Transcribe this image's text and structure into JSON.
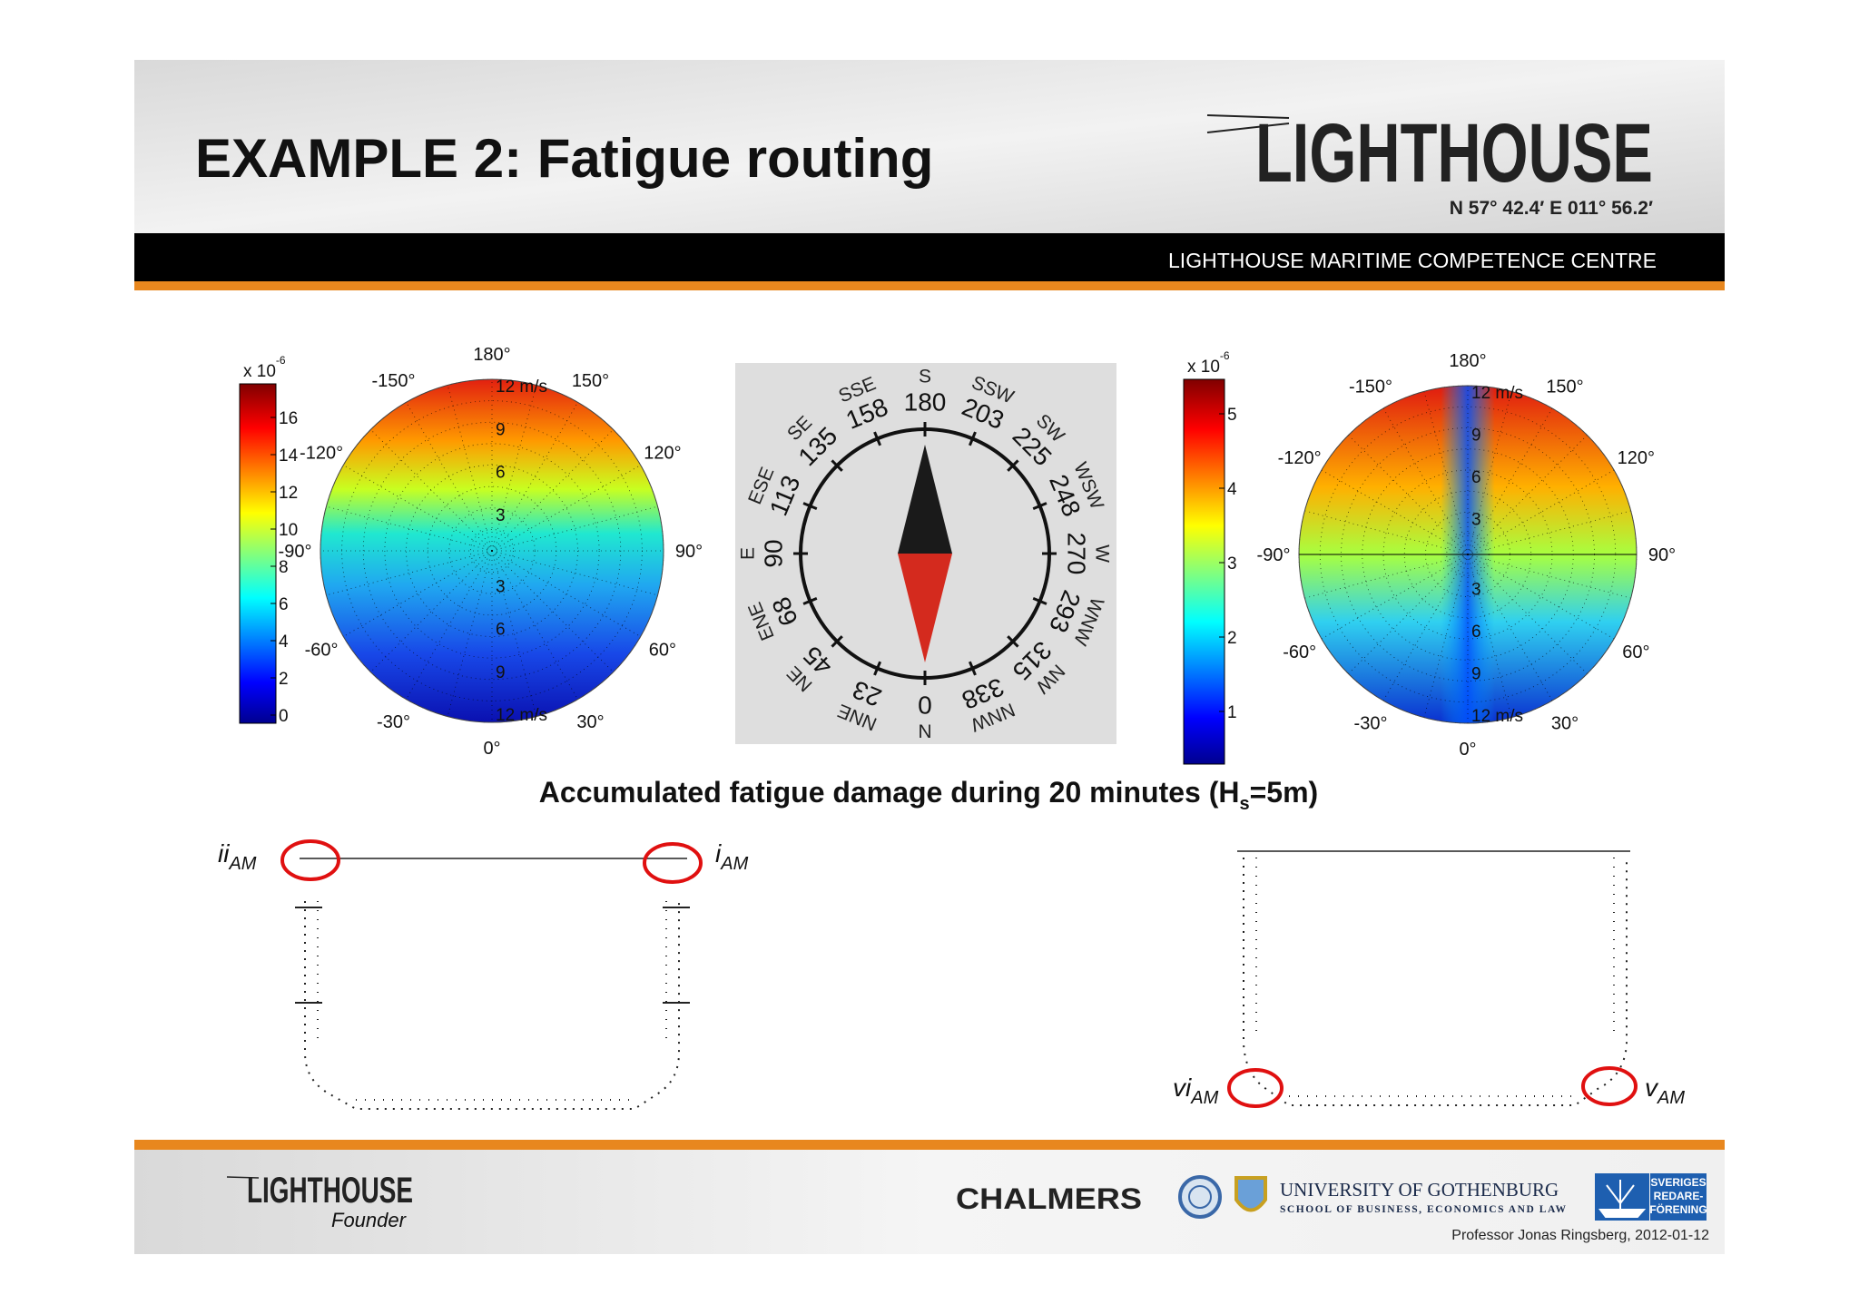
{
  "header": {
    "title": "EXAMPLE 2: Fatigue routing",
    "logo": "LIGHTHOUSE",
    "coordinates": "N 57° 42.4′  E 011° 56.2′",
    "banner": "LIGHTHOUSE MARITIME COMPETENCE CENTRE"
  },
  "plot_left": {
    "colorbar_exponent": {
      "base": "x 10",
      "power": "-6"
    },
    "colorbar_ticks": [
      0,
      2,
      4,
      6,
      8,
      10,
      12,
      14,
      16
    ],
    "rings": [
      "3",
      "6",
      "9",
      "12 m/s"
    ],
    "angles": [
      "0°",
      "30°",
      "60°",
      "90°",
      "120°",
      "150°",
      "180°",
      "-150°",
      "-120°",
      "-90°",
      "-60°",
      "-30°"
    ]
  },
  "compass": {
    "directions": [
      {
        "name": "S",
        "deg": "180"
      },
      {
        "name": "SSW",
        "deg": "203"
      },
      {
        "name": "SW",
        "deg": "225"
      },
      {
        "name": "WSW",
        "deg": "248"
      },
      {
        "name": "W",
        "deg": "270"
      },
      {
        "name": "WNW",
        "deg": "293"
      },
      {
        "name": "NW",
        "deg": "315"
      },
      {
        "name": "NNW",
        "deg": "338"
      },
      {
        "name": "N",
        "deg": "0"
      },
      {
        "name": "NNE",
        "deg": "23"
      },
      {
        "name": "NE",
        "deg": "45"
      },
      {
        "name": "ENE",
        "deg": "68"
      },
      {
        "name": "E",
        "deg": "90"
      },
      {
        "name": "ESE",
        "deg": "113"
      },
      {
        "name": "SE",
        "deg": "135"
      },
      {
        "name": "SSE",
        "deg": "158"
      }
    ]
  },
  "plot_right": {
    "colorbar_exponent": {
      "base": "x 10",
      "power": "-6"
    },
    "colorbar_ticks": [
      1,
      2,
      3,
      4,
      5
    ],
    "rings": [
      "3",
      "6",
      "9",
      "12 m/s"
    ],
    "angles": [
      "0°",
      "30°",
      "60°",
      "90°",
      "120°",
      "150°",
      "180°",
      "-150°",
      "-120°",
      "-90°",
      "-60°",
      "-30°"
    ]
  },
  "caption": {
    "before": "Accumulated fatigue damage during 20 minutes (H",
    "sub": "s",
    "after": "=5m)"
  },
  "hull_labels": [
    {
      "main": "ii",
      "sub": "AM"
    },
    {
      "main": "i",
      "sub": "AM"
    },
    {
      "main": "vi",
      "sub": "AM"
    },
    {
      "main": "v",
      "sub": "AM"
    }
  ],
  "footer": {
    "logo": "LIGHTHOUSE",
    "founder": "Founder",
    "chalmers": "CHALMERS",
    "university": "UNIVERSITY OF GOTHENBURG",
    "school": "SCHOOL OF BUSINESS, ECONOMICS AND LAW",
    "sveriges": [
      "SVERIGES",
      "REDARE-",
      "FÖRENING"
    ],
    "credit": "Professor Jonas Ringsberg, 2012-01-12"
  }
}
